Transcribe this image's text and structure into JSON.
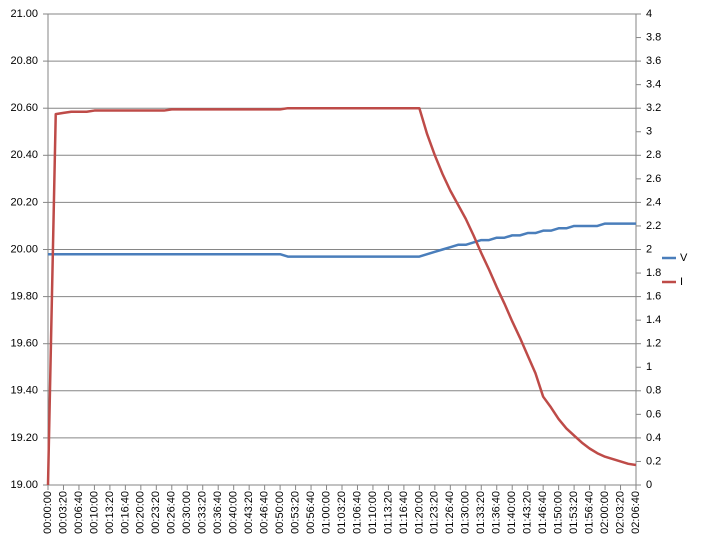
{
  "chart_data": {
    "type": "line",
    "categories": [
      "00:00:00",
      null,
      "00:03:20",
      null,
      "00:06:40",
      null,
      "00:10:00",
      null,
      "00:13:20",
      null,
      "00:16:40",
      null,
      "00:20:00",
      null,
      "00:23:20",
      null,
      "00:26:40",
      null,
      "00:30:00",
      null,
      "00:33:20",
      null,
      "00:36:40",
      null,
      "00:40:00",
      null,
      "00:43:20",
      null,
      "00:46:40",
      null,
      "00:50:00",
      null,
      "00:53:20",
      null,
      "00:56:40",
      null,
      "01:00:00",
      null,
      "01:03:20",
      null,
      "01:06:40",
      null,
      "01:10:00",
      null,
      "01:13:20",
      null,
      "01:16:40",
      null,
      "01:20:00",
      null,
      "01:23:20",
      null,
      "01:26:40",
      null,
      "01:30:00",
      null,
      "01:33:20",
      null,
      "01:36:40",
      null,
      "01:40:00",
      null,
      "01:43:20",
      null,
      "01:46:40",
      null,
      "01:50:00",
      null,
      "01:53:20",
      null,
      "01:56:40",
      null,
      "02:00:00",
      null,
      "02:03:20",
      null,
      "02:06:40"
    ],
    "series": [
      {
        "name": "V",
        "color": "#4a7ebb",
        "values": [
          19.98,
          19.98,
          19.98,
          19.98,
          19.98,
          19.98,
          19.98,
          19.98,
          19.98,
          19.98,
          19.98,
          19.98,
          19.98,
          19.98,
          19.98,
          19.98,
          19.98,
          19.98,
          19.98,
          19.98,
          19.98,
          19.98,
          19.98,
          19.98,
          19.98,
          19.98,
          19.98,
          19.98,
          19.98,
          19.98,
          19.98,
          19.97,
          19.97,
          19.97,
          19.97,
          19.97,
          19.97,
          19.97,
          19.97,
          19.97,
          19.97,
          19.97,
          19.97,
          19.97,
          19.97,
          19.97,
          19.97,
          19.97,
          19.97,
          19.98,
          19.99,
          20.0,
          20.01,
          20.02,
          20.02,
          20.03,
          20.04,
          20.04,
          20.05,
          20.05,
          20.06,
          20.06,
          20.07,
          20.07,
          20.08,
          20.08,
          20.09,
          20.09,
          20.1,
          20.1,
          20.1,
          20.1,
          20.11,
          20.11,
          20.11,
          20.11,
          20.11
        ]
      },
      {
        "name": "I",
        "color": "#be4b48",
        "axis": "y2",
        "values": [
          0,
          3.15,
          3.16,
          3.17,
          3.17,
          3.17,
          3.18,
          3.18,
          3.18,
          3.18,
          3.18,
          3.18,
          3.18,
          3.18,
          3.18,
          3.18,
          3.19,
          3.19,
          3.19,
          3.19,
          3.19,
          3.19,
          3.19,
          3.19,
          3.19,
          3.19,
          3.19,
          3.19,
          3.19,
          3.19,
          3.19,
          3.2,
          3.2,
          3.2,
          3.2,
          3.2,
          3.2,
          3.2,
          3.2,
          3.2,
          3.2,
          3.2,
          3.2,
          3.2,
          3.2,
          3.2,
          3.2,
          3.2,
          3.2,
          2.98,
          2.8,
          2.64,
          2.5,
          2.38,
          2.26,
          2.12,
          1.97,
          1.83,
          1.68,
          1.54,
          1.39,
          1.25,
          1.1,
          0.95,
          0.75,
          0.66,
          0.56,
          0.48,
          0.42,
          0.36,
          0.31,
          0.27,
          0.24,
          0.22,
          0.2,
          0.18,
          0.17
        ]
      }
    ],
    "ylim": [
      19,
      21
    ],
    "yticks": [
      {
        "value": 19,
        "label": "19.00"
      },
      {
        "value": 19.2,
        "label": "19.20"
      },
      {
        "value": 19.4,
        "label": "19.40"
      },
      {
        "value": 19.6,
        "label": "19.60"
      },
      {
        "value": 19.8,
        "label": "19.80"
      },
      {
        "value": 20,
        "label": "20.00"
      },
      {
        "value": 20.2,
        "label": "20.20"
      },
      {
        "value": 20.4,
        "label": "20.40"
      },
      {
        "value": 20.6,
        "label": "20.60"
      },
      {
        "value": 20.8,
        "label": "20.80"
      },
      {
        "value": 21,
        "label": "21.00"
      }
    ],
    "y2lim": [
      0,
      4
    ],
    "y2ticks": [
      0,
      0.2,
      0.4,
      0.6,
      0.8,
      1,
      1.2,
      1.4,
      1.6,
      1.8,
      2,
      2.2,
      2.4,
      2.6,
      2.8,
      3,
      3.2,
      3.4,
      3.6,
      3.8,
      4
    ],
    "grid": true,
    "legend": "right"
  }
}
